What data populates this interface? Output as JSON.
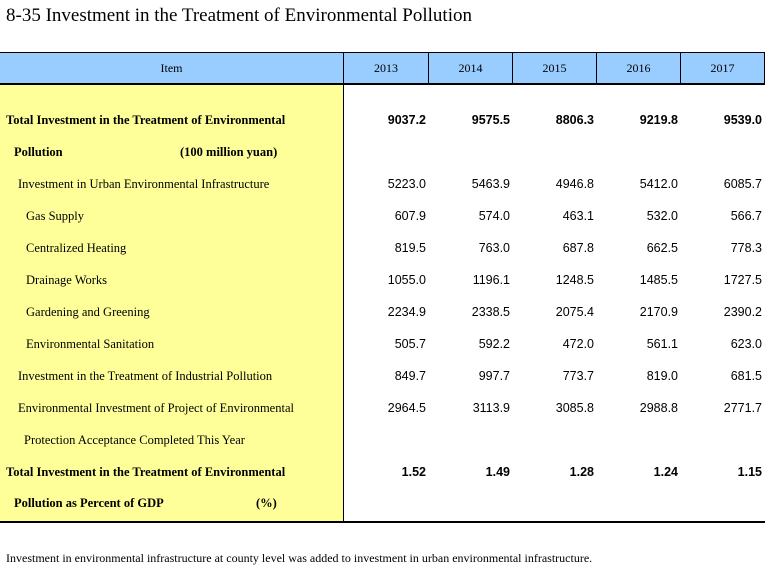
{
  "title": "8-35  Investment in the Treatment of Environmental Pollution",
  "header": {
    "item": "Item",
    "years": [
      "2013",
      "2014",
      "2015",
      "2016",
      "2017"
    ]
  },
  "rows": [
    {
      "label": "Total Investment in the Treatment of Environmental",
      "values": [
        "9037.2",
        "9575.5",
        "8806.3",
        "9219.8",
        "9539.0"
      ]
    },
    {
      "label": "Pollution",
      "unit": "(100 million yuan)",
      "values": []
    },
    {
      "label": "Investment in Urban Environmental Infrastructure",
      "values": [
        "5223.0",
        "5463.9",
        "4946.8",
        "5412.0",
        "6085.7"
      ]
    },
    {
      "label": "Gas Supply",
      "values": [
        "607.9",
        "574.0",
        "463.1",
        "532.0",
        "566.7"
      ]
    },
    {
      "label": "Centralized Heating",
      "values": [
        "819.5",
        "763.0",
        "687.8",
        "662.5",
        "778.3"
      ]
    },
    {
      "label": "Drainage Works",
      "values": [
        "1055.0",
        "1196.1",
        "1248.5",
        "1485.5",
        "1727.5"
      ]
    },
    {
      "label": "Gardening and Greening",
      "values": [
        "2234.9",
        "2338.5",
        "2075.4",
        "2170.9",
        "2390.2"
      ]
    },
    {
      "label": "Environmental Sanitation",
      "values": [
        "505.7",
        "592.2",
        "472.0",
        "561.1",
        "623.0"
      ]
    },
    {
      "label": "Investment in the Treatment of Industrial Pollution",
      "values": [
        "849.7",
        "997.7",
        "773.7",
        "819.0",
        "681.5"
      ]
    },
    {
      "label": "Environmental Investment of Project of Environmental",
      "values": [
        "2964.5",
        "3113.9",
        "3085.8",
        "2988.8",
        "2771.7"
      ]
    },
    {
      "label": "Protection Acceptance Completed This Year",
      "values": []
    },
    {
      "label": "Total Investment in the Treatment of Environmental",
      "values": [
        "1.52",
        "1.49",
        "1.28",
        "1.24",
        "1.15"
      ]
    },
    {
      "label": "Pollution as Percent of GDP",
      "unit": "(%)",
      "values": []
    }
  ],
  "footnote": "Investment in environmental infrastructure at county level was added to investment in urban environmental infrastructure."
}
